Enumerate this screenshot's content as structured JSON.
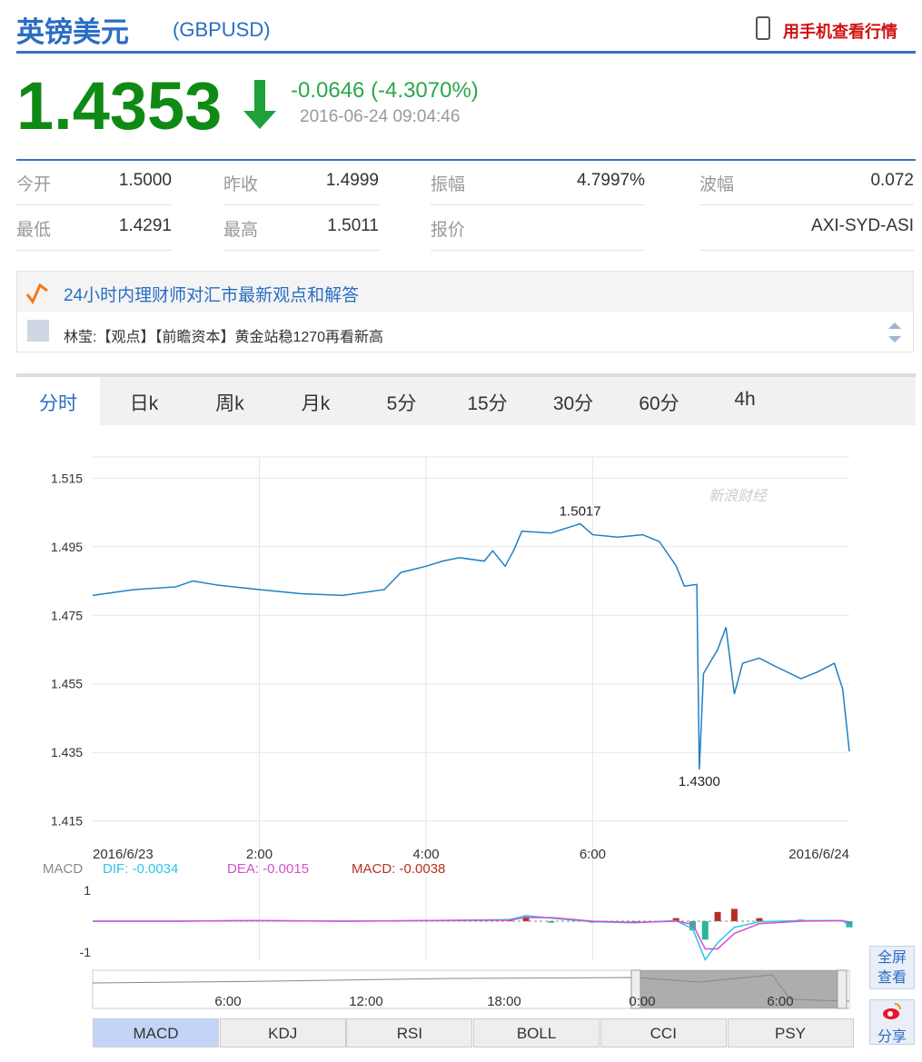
{
  "header": {
    "title": "英镑美元",
    "symbol": "(GBPUSD)",
    "mobile_link": "用手机查看行情"
  },
  "quote": {
    "price": "1.4353",
    "change": "-0.0646 (-4.3070%)",
    "time": "2016-06-24 09:04:46"
  },
  "stats": [
    [
      [
        "今开",
        "1.5000"
      ],
      [
        "昨收",
        "1.4999"
      ],
      [
        "振幅",
        "4.7997%"
      ],
      [
        "波幅",
        "0.072"
      ]
    ],
    [
      [
        "最低",
        "1.4291"
      ],
      [
        "最高",
        "1.5011"
      ],
      [
        "报价",
        ""
      ]
    ]
  ],
  "quote_source": "AXI-SYD-ASI",
  "news": {
    "headline": "24小时内理财师对汇市最新观点和解答",
    "item": "林莹:【观点】【前瞻资本】黄金站稳1270再看新高"
  },
  "tabs": [
    "分时",
    "日k",
    "周k",
    "月k",
    "5分",
    "15分",
    "30分",
    "60分",
    "4h"
  ],
  "chart_data": [
    {
      "type": "line",
      "watermark": "新浪财经",
      "grid": true,
      "x": [
        0,
        0.5,
        1,
        1.2,
        1.5,
        2,
        2.5,
        3,
        3.5,
        3.7,
        4,
        4.2,
        4.4,
        4.7,
        4.8,
        4.95,
        5.05,
        5.15,
        5.5,
        5.85,
        6,
        6.3,
        6.6,
        6.8,
        7,
        7.1,
        7.25,
        7.28,
        7.33,
        7.5,
        7.6,
        7.7,
        7.8,
        8,
        8.2,
        8.5,
        8.7,
        8.9,
        9,
        9.08
      ],
      "series": [
        {
          "color": "#1f80c4",
          "values": [
            1.4808,
            1.4825,
            1.4833,
            1.485,
            1.4838,
            1.4825,
            1.4813,
            1.4808,
            1.4825,
            1.4875,
            1.4893,
            1.4908,
            1.4918,
            1.4908,
            1.4938,
            1.4893,
            1.4938,
            1.4995,
            1.499,
            1.5017,
            1.4985,
            1.4978,
            1.4985,
            1.4965,
            1.4895,
            1.4835,
            1.484,
            1.43,
            1.458,
            1.465,
            1.4715,
            1.452,
            1.461,
            1.4625,
            1.46,
            1.4565,
            1.4585,
            1.461,
            1.4535,
            1.4353
          ]
        }
      ],
      "annotations": [
        {
          "text": "1.5017",
          "x": 5.85,
          "y": 1.5017
        },
        {
          "text": "1.4300",
          "x": 7.28,
          "y": 1.43
        }
      ],
      "xlim": [
        0,
        9.08
      ],
      "xticks": [
        {
          "value": 0,
          "label": "2016/6/23"
        },
        {
          "value": 2,
          "label": "2:00"
        },
        {
          "value": 4,
          "label": "4:00"
        },
        {
          "value": 6,
          "label": "6:00"
        },
        {
          "value": 9.08,
          "label": "2016/6/24"
        }
      ],
      "ylim": [
        1.412,
        1.518
      ],
      "yticks": [
        1.515,
        1.495,
        1.475,
        1.455,
        1.435,
        1.415
      ]
    },
    {
      "type": "macd",
      "title": "MACD",
      "x": [
        0,
        1,
        2,
        3,
        4,
        5,
        5.2,
        5.5,
        6,
        6.5,
        7,
        7.2,
        7.35,
        7.5,
        7.7,
        8,
        8.5,
        9,
        9.08
      ],
      "series": [
        {
          "legend": "DIF: -0.0034",
          "color": "#2bc6e6",
          "values": [
            0,
            0,
            0.02,
            0,
            0.02,
            0.05,
            0.18,
            0.1,
            -0.02,
            -0.05,
            0.02,
            -0.25,
            -1.25,
            -0.7,
            -0.2,
            -0.02,
            0.02,
            0.02,
            -0.15
          ]
        },
        {
          "legend": "DEA: -0.0015",
          "color": "#d64fd0",
          "values": [
            0,
            0,
            0.02,
            0,
            0.02,
            0.03,
            0.12,
            0.12,
            0,
            -0.04,
            0,
            -0.1,
            -0.9,
            -0.9,
            -0.4,
            -0.08,
            0,
            0.02,
            -0.05
          ]
        },
        {
          "legend": "MACD: -0.0038",
          "color": "#b5301f",
          "values": [
            0,
            0,
            0,
            0,
            0,
            0.05,
            0.15,
            -0.05,
            -0.05,
            -0.05,
            0.1,
            -0.3,
            -0.6,
            0.3,
            0.4,
            0.1,
            0.05,
            0,
            -0.2
          ]
        }
      ],
      "xlim": [
        0,
        9.08
      ],
      "ylim": [
        -1.3,
        1.3
      ],
      "yticks": [
        1,
        -1
      ]
    }
  ],
  "navigator": {
    "labels": [
      "6:00",
      "12:00",
      "18:00",
      "0:00",
      "6:00"
    ]
  },
  "indicators": [
    "MACD",
    "KDJ",
    "RSI",
    "BOLL",
    "CCI",
    "PSY"
  ],
  "side_buttons": [
    "全屏查看",
    "分享"
  ]
}
